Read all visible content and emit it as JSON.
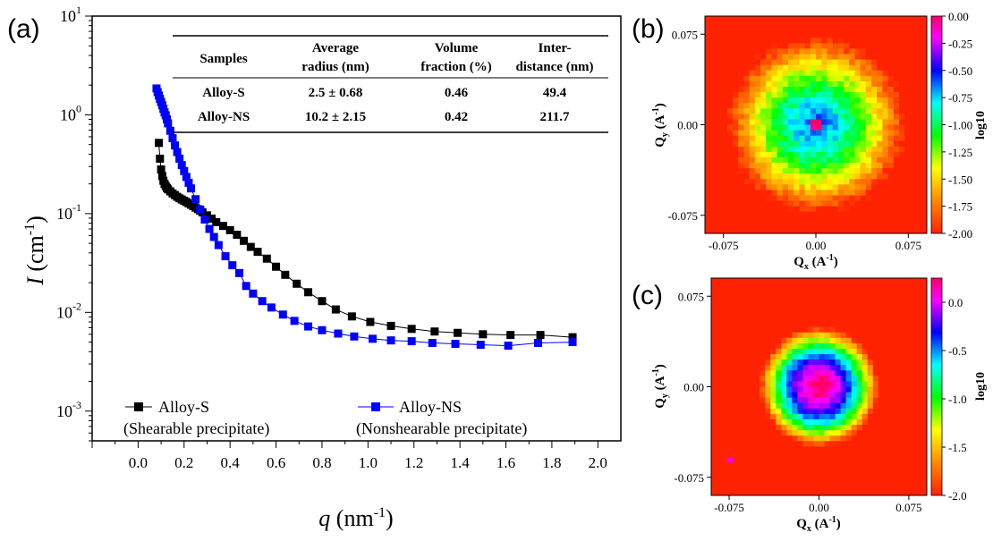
{
  "panels": {
    "a": {
      "label": "(a)"
    },
    "b": {
      "label": "(b)"
    },
    "c": {
      "label": "(c)"
    }
  },
  "chart_data": [
    {
      "id": "a",
      "type": "scatter",
      "title": "",
      "xlabel_italic": "q",
      "xlabel_unit": " (nm",
      "xlabel_sup": "-1",
      "xlabel_close": ")",
      "ylabel_italic": "I",
      "ylabel_unit": " (cm",
      "ylabel_sup": "-1",
      "ylabel_close": ")",
      "xlim": [
        -0.2,
        2.1
      ],
      "ylim": [
        0.0005,
        10
      ],
      "yscale": "log",
      "xticks": [
        "0.0",
        "0.2",
        "0.4",
        "0.6",
        "0.8",
        "1.0",
        "1.2",
        "1.4",
        "1.6",
        "1.8",
        "2.0"
      ],
      "yticks": [
        {
          "base": "10",
          "exp": "1"
        },
        {
          "base": "10",
          "exp": "0"
        },
        {
          "base": "10",
          "exp": "-1"
        },
        {
          "base": "10",
          "exp": "-2"
        },
        {
          "base": "10",
          "exp": "-3"
        }
      ],
      "grid": false,
      "legend_position": "bottom",
      "series": [
        {
          "name": "Alloy-S",
          "description": "(Shearable precipitate)",
          "color": "#000000",
          "x": [
            0.09,
            0.095,
            0.1,
            0.105,
            0.11,
            0.115,
            0.12,
            0.125,
            0.13,
            0.14,
            0.15,
            0.16,
            0.17,
            0.18,
            0.19,
            0.2,
            0.21,
            0.22,
            0.23,
            0.24,
            0.25,
            0.26,
            0.27,
            0.28,
            0.3,
            0.32,
            0.34,
            0.37,
            0.4,
            0.43,
            0.46,
            0.49,
            0.52,
            0.56,
            0.6,
            0.64,
            0.69,
            0.74,
            0.8,
            0.86,
            0.93,
            1.01,
            1.1,
            1.19,
            1.29,
            1.39,
            1.5,
            1.62,
            1.75,
            1.89
          ],
          "y": [
            0.52,
            0.36,
            0.28,
            0.24,
            0.215,
            0.2,
            0.19,
            0.182,
            0.176,
            0.168,
            0.16,
            0.154,
            0.148,
            0.143,
            0.139,
            0.135,
            0.131,
            0.127,
            0.123,
            0.119,
            0.115,
            0.111,
            0.107,
            0.103,
            0.096,
            0.089,
            0.082,
            0.075,
            0.068,
            0.061,
            0.053,
            0.046,
            0.041,
            0.035,
            0.029,
            0.024,
            0.0195,
            0.016,
            0.013,
            0.0107,
            0.0091,
            0.008,
            0.0073,
            0.0068,
            0.0064,
            0.0062,
            0.006,
            0.0059,
            0.0059,
            0.0056
          ]
        },
        {
          "name": "Alloy-NS",
          "description": "(Nonshearable precipitate)",
          "color": "#0000ff",
          "x": [
            0.08,
            0.085,
            0.09,
            0.095,
            0.1,
            0.105,
            0.11,
            0.115,
            0.12,
            0.125,
            0.13,
            0.14,
            0.15,
            0.16,
            0.17,
            0.18,
            0.19,
            0.2,
            0.21,
            0.22,
            0.23,
            0.25,
            0.27,
            0.29,
            0.31,
            0.33,
            0.35,
            0.38,
            0.41,
            0.44,
            0.47,
            0.5,
            0.54,
            0.58,
            0.63,
            0.68,
            0.74,
            0.8,
            0.87,
            0.94,
            1.02,
            1.1,
            1.19,
            1.28,
            1.38,
            1.49,
            1.61,
            1.74,
            1.89
          ],
          "y": [
            1.85,
            1.7,
            1.57,
            1.45,
            1.35,
            1.25,
            1.15,
            1.06,
            0.99,
            0.9,
            0.82,
            0.69,
            0.58,
            0.49,
            0.42,
            0.36,
            0.31,
            0.27,
            0.235,
            0.205,
            0.18,
            0.14,
            0.11,
            0.087,
            0.07,
            0.058,
            0.048,
            0.037,
            0.03,
            0.025,
            0.0185,
            0.0155,
            0.013,
            0.0112,
            0.0095,
            0.0082,
            0.0072,
            0.0066,
            0.0061,
            0.0057,
            0.0054,
            0.0052,
            0.0051,
            0.0049,
            0.0048,
            0.0047,
            0.0046,
            0.0049,
            0.005
          ]
        }
      ]
    },
    {
      "id": "b",
      "type": "heatmap",
      "title": "",
      "xlabel_main": "Q",
      "xlabel_sub": "x",
      "xlabel_unit": " (A",
      "xlabel_sup": "-1",
      "xlabel_close": ")",
      "ylabel_main": "Q",
      "ylabel_sub": "y",
      "ylabel_unit": " (A",
      "ylabel_sup": "-1",
      "ylabel_close": ")",
      "xlim": [
        -0.09,
        0.09
      ],
      "ylim": [
        -0.09,
        0.09
      ],
      "xticks": [
        "-0.075",
        "0.00",
        "0.075"
      ],
      "yticks": [
        "0.075",
        "0.00",
        "-0.075"
      ],
      "colorbar_label": "log10",
      "colorbar_range": [
        -2.0,
        0.0
      ],
      "colorbar_ticks": [
        "0.00",
        "-0.25",
        "-0.50",
        "-0.75",
        "-1.00",
        "-1.25",
        "-1.50",
        "-1.75",
        "-2.00"
      ],
      "intensity_profile": {
        "center_log10": 0.0,
        "core_radius": 0.006,
        "ring_radius": 0.075,
        "shape": "broad halo"
      }
    },
    {
      "id": "c",
      "type": "heatmap",
      "title": "",
      "xlabel_main": "Q",
      "xlabel_sub": "x",
      "xlabel_unit": " (A",
      "xlabel_sup": "-1",
      "xlabel_close": ")",
      "ylabel_main": "Q",
      "ylabel_sub": "y",
      "ylabel_unit": " (A",
      "ylabel_sup": "-1",
      "ylabel_close": ")",
      "xlim": [
        -0.09,
        0.09
      ],
      "ylim": [
        -0.09,
        0.09
      ],
      "xticks": [
        "-0.075",
        "0.00",
        "0.075"
      ],
      "yticks": [
        "0.075",
        "0.00",
        "-0.075"
      ],
      "colorbar_label": "log10",
      "colorbar_range": [
        -2.0,
        0.25
      ],
      "colorbar_ticks": [
        "0.0",
        "-0.5",
        "-1.0",
        "-1.5",
        "-2.0"
      ],
      "intensity_profile": {
        "center_log10": 0.25,
        "ring_radius": 0.05,
        "shape": "compact disc"
      }
    }
  ],
  "table": {
    "headers": [
      [
        "Samples"
      ],
      [
        "Average",
        "radius (nm)"
      ],
      [
        "Volume",
        "fraction (%)"
      ],
      [
        "Inter-",
        "distance (nm)"
      ]
    ],
    "rows": [
      [
        "Alloy-S",
        "2.5 ± 0.68",
        "0.46",
        "49.4"
      ],
      [
        "Alloy-NS",
        "10.2 ± 2.15",
        "0.42",
        "211.7"
      ]
    ]
  }
}
